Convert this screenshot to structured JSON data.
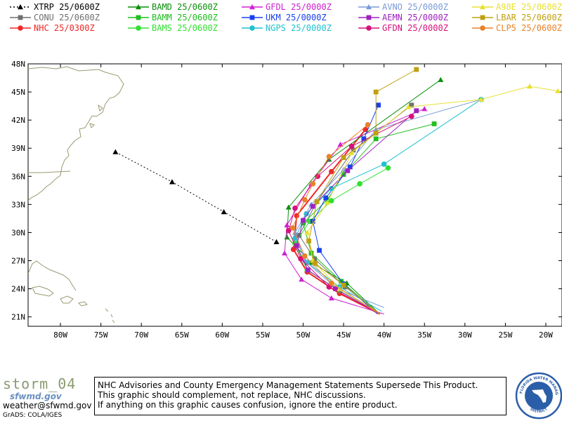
{
  "legend": [
    {
      "model": "XTRP",
      "time": "25/0600Z",
      "color": "#000000",
      "marker": "triangle",
      "dashed": true
    },
    {
      "model": "CONU",
      "time": "25/0600Z",
      "color": "#707070",
      "marker": "square"
    },
    {
      "model": "NHC",
      "time": "25/0300Z",
      "color": "#ee2828",
      "marker": "circle"
    },
    {
      "model": "BAMD",
      "time": "25/0600Z",
      "color": "#0a8f0a",
      "marker": "triangle"
    },
    {
      "model": "BAMM",
      "time": "25/0600Z",
      "color": "#1fbf1f",
      "marker": "square"
    },
    {
      "model": "BAMS",
      "time": "25/0600Z",
      "color": "#30e030",
      "marker": "circle"
    },
    {
      "model": "GFDL",
      "time": "25/0000Z",
      "color": "#d020d0",
      "marker": "triangle"
    },
    {
      "model": "UKM",
      "time": "25/0000Z",
      "color": "#1840f0",
      "marker": "square"
    },
    {
      "model": "NGPS",
      "time": "25/0000Z",
      "color": "#20c0d0",
      "marker": "circle"
    },
    {
      "model": "AVNO",
      "time": "25/0000Z",
      "color": "#7a9ad8",
      "marker": "triangle"
    },
    {
      "model": "AEMN",
      "time": "25/0000Z",
      "color": "#a020c0",
      "marker": "square"
    },
    {
      "model": "GFDN",
      "time": "25/0000Z",
      "color": "#d8107a",
      "marker": "circle"
    },
    {
      "model": "A98E",
      "time": "25/0600Z",
      "color": "#e8e030",
      "marker": "triangle"
    },
    {
      "model": "LBAR",
      "time": "25/0600Z",
      "color": "#c0a010",
      "marker": "square"
    },
    {
      "model": "CLP5",
      "time": "25/0600Z",
      "color": "#e8822a",
      "marker": "circle"
    }
  ],
  "map": {
    "lon_min": -84,
    "lon_max": -18,
    "lat_min": 20,
    "lat_max": 48,
    "lat_ticks": [
      21,
      24,
      27,
      30,
      33,
      36,
      39,
      42,
      45,
      48
    ],
    "lon_ticks": [
      -80,
      -75,
      -70,
      -65,
      -60,
      -55,
      -50,
      -45,
      -40,
      -35,
      -30,
      -25,
      -20
    ],
    "lat_labels": [
      "21N",
      "24N",
      "27N",
      "30N",
      "33N",
      "36N",
      "39N",
      "42N",
      "45N",
      "48N"
    ],
    "lon_labels": [
      "80W",
      "75W",
      "70W",
      "65W",
      "60W",
      "55W",
      "50W",
      "45W",
      "40W",
      "35W",
      "30W",
      "25W",
      "20W"
    ]
  },
  "tracks": [
    {
      "model": "XTRP",
      "points": [
        [
          -53.3,
          29.0
        ],
        [
          -59.8,
          32.2
        ],
        [
          -66.2,
          35.4
        ],
        [
          -73.2,
          38.6
        ]
      ]
    },
    {
      "model": "CONU",
      "points": [
        [
          -40.5,
          21.3
        ],
        [
          -44.8,
          24.2
        ],
        [
          -48.6,
          27.2
        ],
        [
          -50.5,
          29.7
        ],
        [
          -48.3,
          33.3
        ],
        [
          -43.8,
          38.8
        ],
        [
          -36.6,
          43.6
        ]
      ]
    },
    {
      "model": "NHC",
      "points": [
        [
          -40.5,
          21.3
        ],
        [
          -45.5,
          23.5
        ],
        [
          -49.5,
          25.8
        ],
        [
          -51.2,
          28.2
        ],
        [
          -50.8,
          31.8
        ],
        [
          -46.5,
          36.5
        ],
        [
          -42.3,
          41.0
        ]
      ]
    },
    {
      "model": "BAMD",
      "points": [
        [
          -40.5,
          21.3
        ],
        [
          -44.6,
          24.6
        ],
        [
          -49.0,
          26.8
        ],
        [
          -52.0,
          29.5
        ],
        [
          -51.8,
          32.7
        ],
        [
          -46.8,
          37.8
        ],
        [
          -33.0,
          46.3
        ]
      ]
    },
    {
      "model": "BAMM",
      "points": [
        [
          -40.5,
          21.3
        ],
        [
          -45.3,
          24.8
        ],
        [
          -49.0,
          27.8
        ],
        [
          -50.0,
          31.0
        ],
        [
          -47.0,
          33.5
        ],
        [
          -45.0,
          36.2
        ],
        [
          -41.0,
          40.0
        ],
        [
          -33.8,
          41.6
        ]
      ]
    },
    {
      "model": "BAMS",
      "points": [
        [
          -40.5,
          21.3
        ],
        [
          -45.5,
          23.8
        ],
        [
          -49.5,
          26.0
        ],
        [
          -51.0,
          28.8
        ],
        [
          -49.2,
          31.2
        ],
        [
          -46.5,
          33.4
        ],
        [
          -43.0,
          35.2
        ],
        [
          -39.5,
          36.9
        ]
      ]
    },
    {
      "model": "GFDL",
      "points": [
        [
          -40.0,
          21.3
        ],
        [
          -46.5,
          23.0
        ],
        [
          -50.2,
          25.0
        ],
        [
          -52.3,
          27.8
        ],
        [
          -52.0,
          30.8
        ],
        [
          -49.0,
          35.2
        ],
        [
          -45.4,
          39.4
        ],
        [
          -35.0,
          43.2
        ]
      ]
    },
    {
      "model": "UKM",
      "points": [
        [
          -40.8,
          21.3
        ],
        [
          -45.0,
          24.5
        ],
        [
          -48.0,
          28.1
        ],
        [
          -48.8,
          31.2
        ],
        [
          -47.2,
          33.7
        ],
        [
          -44.2,
          37.0
        ],
        [
          -42.5,
          40.0
        ],
        [
          -40.7,
          43.6
        ]
      ]
    },
    {
      "model": "NGPS",
      "points": [
        [
          -40.3,
          21.6
        ],
        [
          -45.5,
          24.2
        ],
        [
          -49.5,
          26.8
        ],
        [
          -51.0,
          29.4
        ],
        [
          -49.6,
          32.0
        ],
        [
          -46.5,
          34.7
        ],
        [
          -40.0,
          37.3
        ],
        [
          -28.0,
          44.2
        ]
      ]
    },
    {
      "model": "AVNO",
      "points": [
        [
          -40.0,
          22.0
        ],
        [
          -45.8,
          24.0
        ],
        [
          -49.8,
          27.0
        ],
        [
          -51.0,
          30.0
        ],
        [
          -49.0,
          33.0
        ],
        [
          -45.0,
          36.7
        ],
        [
          -41.0,
          41.0
        ],
        [
          -28.0,
          44.2
        ]
      ]
    },
    {
      "model": "AEMN",
      "points": [
        [
          -40.5,
          21.3
        ],
        [
          -46.0,
          24.0
        ],
        [
          -49.4,
          26.0
        ],
        [
          -50.8,
          28.6
        ],
        [
          -50.0,
          31.3
        ],
        [
          -48.8,
          32.8
        ],
        [
          -44.5,
          36.6
        ],
        [
          -36.0,
          43.0
        ]
      ]
    },
    {
      "model": "GFDN",
      "points": [
        [
          -40.5,
          21.3
        ],
        [
          -46.8,
          24.2
        ],
        [
          -50.3,
          27.2
        ],
        [
          -51.8,
          30.2
        ],
        [
          -51.0,
          32.6
        ],
        [
          -48.2,
          36.0
        ],
        [
          -44.0,
          39.2
        ],
        [
          -36.6,
          42.4
        ]
      ]
    },
    {
      "model": "A98E",
      "points": [
        [
          -40.5,
          21.3
        ],
        [
          -45.5,
          24.0
        ],
        [
          -48.8,
          27.0
        ],
        [
          -49.5,
          30.0
        ],
        [
          -47.0,
          33.2
        ],
        [
          -44.0,
          38.5
        ],
        [
          -37.0,
          43.4
        ],
        [
          -28.0,
          44.2
        ],
        [
          -22.0,
          45.6
        ],
        [
          -18.5,
          45.1
        ]
      ]
    },
    {
      "model": "LBAR",
      "points": [
        [
          -40.5,
          21.3
        ],
        [
          -45.0,
          24.4
        ],
        [
          -48.5,
          26.7
        ],
        [
          -49.3,
          29.1
        ],
        [
          -48.3,
          33.3
        ],
        [
          -45.0,
          38.0
        ],
        [
          -41.0,
          40.6
        ],
        [
          -41.0,
          45.0
        ],
        [
          -36.0,
          47.4
        ]
      ]
    },
    {
      "model": "CLP5",
      "points": [
        [
          -40.5,
          21.3
        ],
        [
          -46.5,
          24.6
        ],
        [
          -49.8,
          27.5
        ],
        [
          -51.3,
          30.5
        ],
        [
          -49.8,
          33.5
        ],
        [
          -48.8,
          35.2
        ],
        [
          -46.8,
          38.1
        ],
        [
          -42.0,
          41.5
        ]
      ]
    }
  ],
  "footer": {
    "logo_text": "storm_04",
    "logo_sub": "sfwmd.gov",
    "email": "weather@sfwmd.gov",
    "grads": "GrADS: COLA/IGES",
    "disclaimer": [
      "NHC Advisories and County Emergency Management Statements Supersede This Product.",
      "This graphic should complement, not replace, NHC discussions.",
      "If anything on this graphic causes confusion, ignore the entire product."
    ]
  },
  "seal": {
    "top_text": "SOUTH FLORIDA WATER MANAGEMENT",
    "bottom_text": "DISTRICT",
    "color": "#2a5ea8"
  }
}
